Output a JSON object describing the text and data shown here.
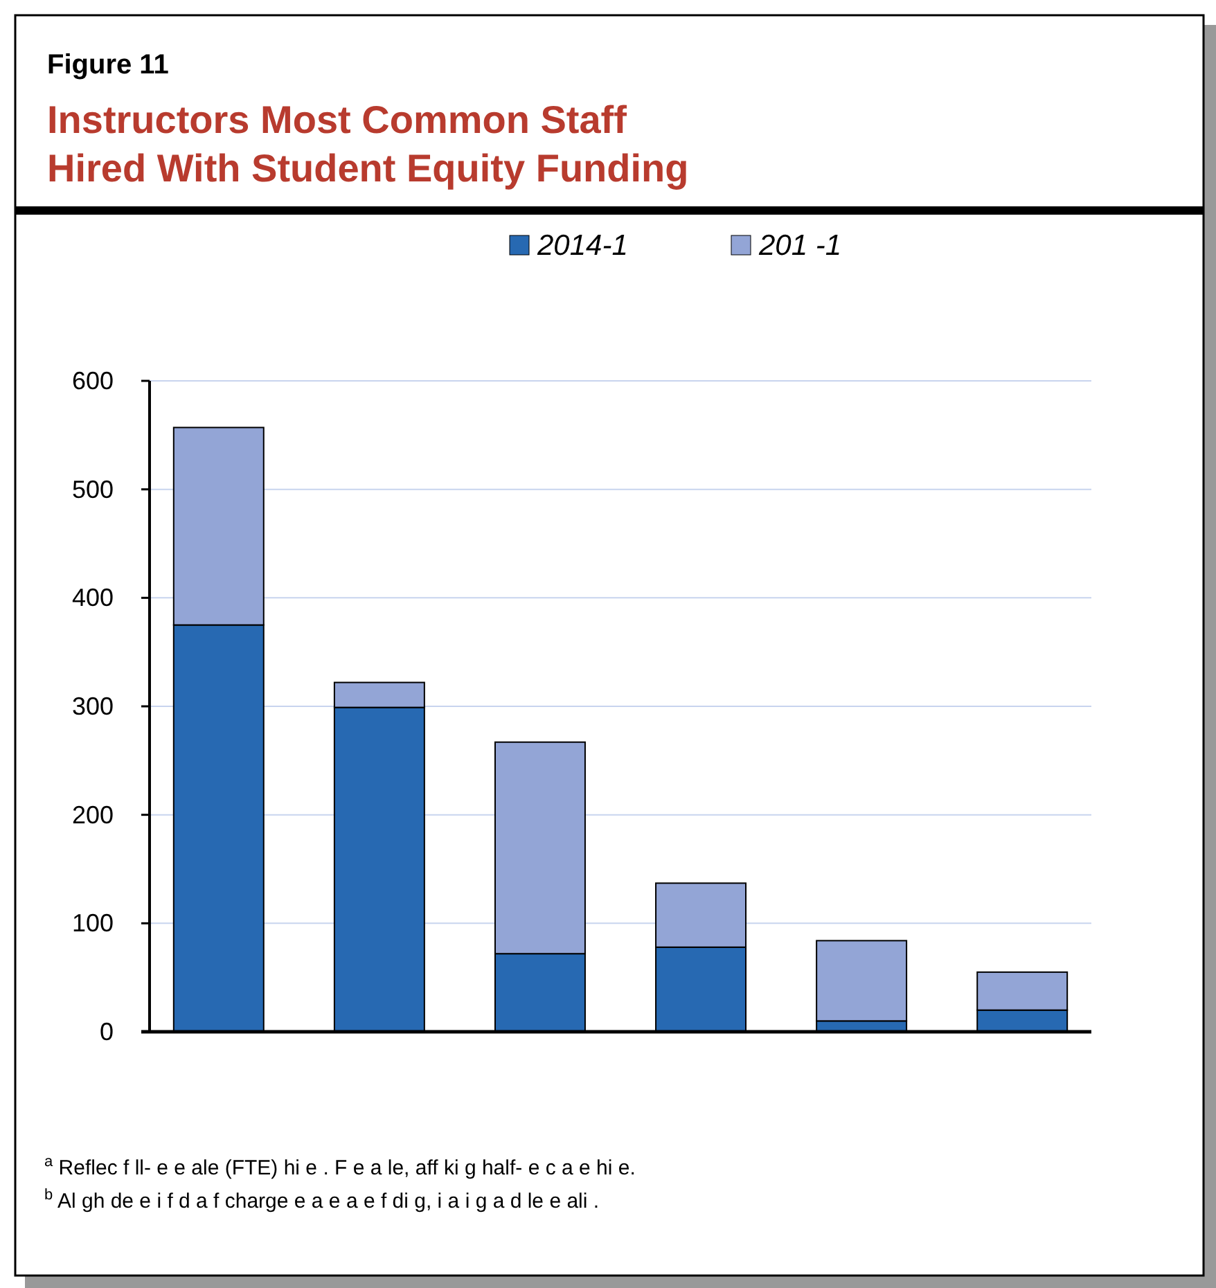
{
  "chart_data": {
    "type": "bar",
    "title": "Instructors Most Common Staff Hired With Student Equity Funding",
    "subtitle": "Figure 11",
    "stacked": true,
    "categories": [
      null,
      null,
      null,
      null,
      null,
      null
    ],
    "series": [
      {
        "name": "2014-1",
        "color": "#2769b2",
        "values": [
          375,
          299,
          72,
          78,
          10,
          20
        ]
      },
      {
        "name": "201 -1",
        "color": "#93a5d6",
        "values": [
          182,
          23,
          195,
          59,
          74,
          35
        ]
      }
    ],
    "ylim": [
      0,
      600
    ],
    "yticks": [
      0,
      100,
      200,
      300,
      400,
      500,
      600
    ],
    "grid": "y",
    "legend": "top",
    "annotations": [
      "$^{a}$ Reflec f ll- e e ale (FTE) hi e . F e a le, aff ki g half- e c a e hi e.",
      "$^{b}$ Al gh de e i f d a f charge e a e a e f di g, i a i g a d le e ali ."
    ]
  }
}
